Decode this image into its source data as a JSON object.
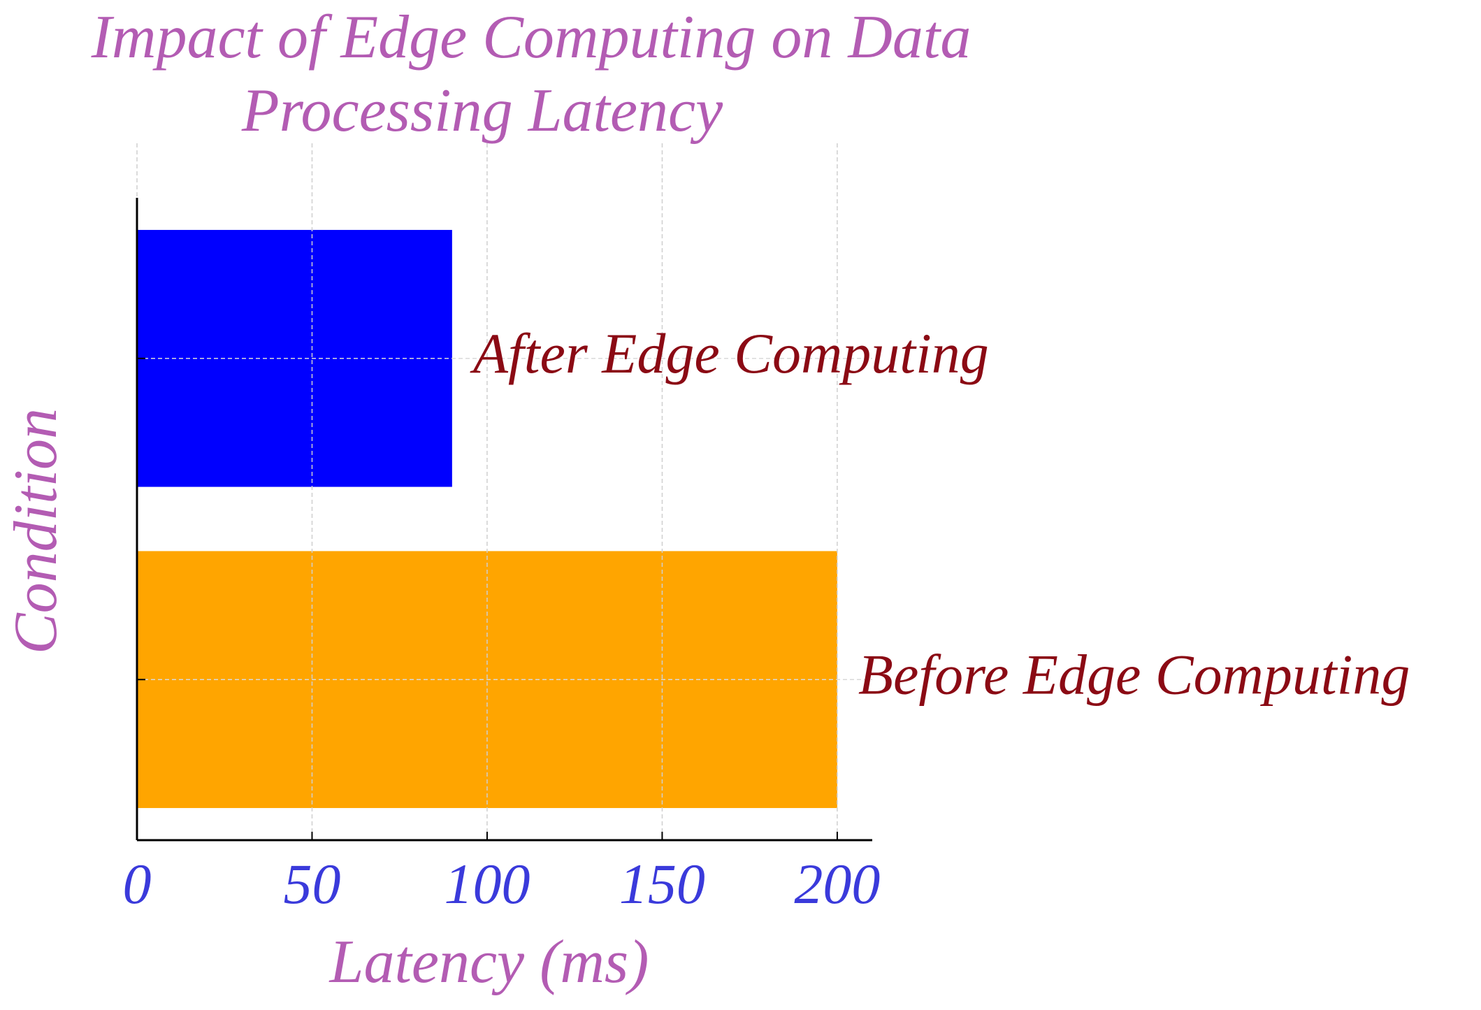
{
  "chart_data": {
    "type": "bar",
    "orientation": "horizontal",
    "title": "Impact of Edge Computing on Data Processing Latency",
    "title_lines": [
      "Impact of Edge Computing on Data",
      "Processing Latency"
    ],
    "xlabel": "Latency (ms)",
    "ylabel": "Condition",
    "xlim": [
      0,
      210
    ],
    "xticks": [
      0,
      50,
      100,
      150,
      200
    ],
    "grid": true,
    "categories": [
      "Before Edge Computing",
      "After Edge Computing"
    ],
    "values": [
      200,
      90
    ],
    "colors": [
      "#FFA500",
      "#0000FF"
    ],
    "title_color": "#B35CB3",
    "axis_label_color": "#B35CB3",
    "tick_label_color": "#3A3ADB",
    "category_label_color": "#8B0A14"
  }
}
